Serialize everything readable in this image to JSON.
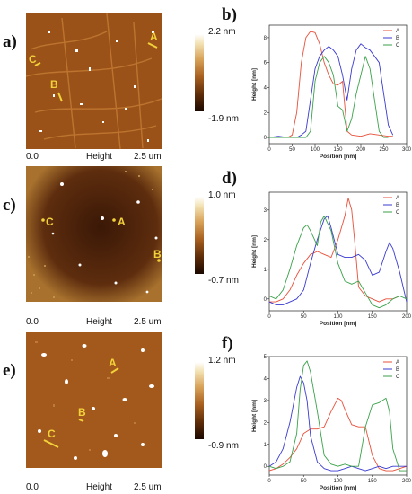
{
  "panels": {
    "a": {
      "label": "a)",
      "scale_max": "2.2 nm",
      "scale_min": "-1.9 nm",
      "x_start": "0.0",
      "channel": "Height",
      "x_end": "2.5 um",
      "markers": [
        "A",
        "C",
        "B"
      ]
    },
    "c": {
      "label": "c)",
      "scale_max": "1.0 nm",
      "scale_min": "-0.7 nm",
      "x_start": "0.0",
      "channel": "Height",
      "x_end": "2.5 um",
      "markers": [
        "C",
        "A",
        "B"
      ]
    },
    "e": {
      "label": "e)",
      "scale_max": "1.2 nm",
      "scale_min": "-0.9 nm",
      "x_start": "0.0",
      "channel": "Height",
      "x_end": "2.5 um",
      "markers": [
        "A",
        "B",
        "C"
      ]
    },
    "b": {
      "label": "b)"
    },
    "d": {
      "label": "d)"
    },
    "f": {
      "label": "f)"
    }
  },
  "colors": {
    "A": "#e8503a",
    "B": "#3a3ad0",
    "C": "#3aa24a"
  },
  "chart_data": [
    {
      "id": "b",
      "type": "line",
      "xlabel": "Position [nm]",
      "ylabel": "Height [nm]",
      "xlim": [
        0,
        300
      ],
      "ylim": [
        -0.5,
        9
      ],
      "xticks": [
        "0",
        "50",
        "100",
        "150",
        "200",
        "250",
        "300"
      ],
      "yticks": [
        "0",
        "2",
        "4",
        "6",
        "8"
      ],
      "series": [
        {
          "name": "A",
          "x": [
            0,
            20,
            40,
            50,
            60,
            70,
            80,
            90,
            100,
            110,
            120,
            130,
            140,
            150,
            160,
            170,
            180,
            200,
            220,
            240,
            260,
            270
          ],
          "y": [
            0,
            0,
            0,
            0.2,
            2,
            6,
            8,
            8.5,
            8.4,
            7.5,
            6,
            5,
            4.3,
            4.2,
            4.5,
            0.5,
            0.2,
            0.1,
            0.3,
            0.2,
            0.1,
            0.1
          ]
        },
        {
          "name": "B",
          "x": [
            0,
            20,
            40,
            60,
            70,
            80,
            90,
            100,
            110,
            120,
            130,
            140,
            150,
            160,
            170,
            180,
            190,
            200,
            210,
            220,
            230,
            240,
            250,
            260,
            270
          ],
          "y": [
            0,
            0.1,
            0,
            0,
            0.2,
            0.5,
            3,
            5.5,
            6.5,
            7,
            7.3,
            7,
            6.5,
            5,
            3,
            5.5,
            7,
            7.5,
            7.2,
            7,
            6.5,
            6,
            3.5,
            1,
            0.2
          ]
        },
        {
          "name": "C",
          "x": [
            0,
            40,
            60,
            70,
            80,
            90,
            100,
            110,
            120,
            130,
            140,
            150,
            160,
            170,
            180,
            190,
            200,
            210,
            220,
            230,
            240,
            250,
            260
          ],
          "y": [
            0,
            0,
            0,
            0,
            0,
            0.5,
            4.5,
            6,
            6.5,
            6,
            5,
            2.5,
            2.2,
            0.5,
            1.5,
            3.5,
            5,
            6.5,
            5.5,
            3,
            0.5,
            0,
            0
          ]
        }
      ]
    },
    {
      "id": "d",
      "type": "line",
      "xlabel": "Position [nm]",
      "ylabel": "Height [nm]",
      "xlim": [
        0,
        200
      ],
      "ylim": [
        -0.4,
        3.6
      ],
      "xticks": [
        "0",
        "50",
        "100",
        "150",
        "200"
      ],
      "yticks": [
        "0",
        "1",
        "2",
        "3"
      ],
      "series": [
        {
          "name": "A",
          "x": [
            0,
            10,
            20,
            30,
            40,
            50,
            60,
            70,
            80,
            90,
            100,
            110,
            115,
            120,
            125,
            130,
            140,
            150,
            160,
            170,
            180,
            190,
            200
          ],
          "y": [
            -0.1,
            -0.1,
            0,
            0.3,
            0.8,
            1.2,
            1.5,
            1.6,
            1.5,
            1.4,
            2,
            2.8,
            3.4,
            3,
            1.8,
            0.4,
            0.1,
            0,
            -0.1,
            0,
            0,
            0.1,
            0.1
          ]
        },
        {
          "name": "B",
          "x": [
            0,
            10,
            20,
            30,
            40,
            50,
            60,
            70,
            80,
            85,
            90,
            100,
            110,
            120,
            130,
            140,
            150,
            160,
            170,
            175,
            180,
            190,
            200
          ],
          "y": [
            -0.1,
            -0.2,
            -0.2,
            -0.1,
            0,
            0.3,
            1.2,
            2,
            2.7,
            2.8,
            2.4,
            1.5,
            1.4,
            1.4,
            1.5,
            1.3,
            0.8,
            0.9,
            1.6,
            1.9,
            1.7,
            0.9,
            -0.1
          ]
        },
        {
          "name": "C",
          "x": [
            0,
            10,
            20,
            30,
            40,
            50,
            55,
            60,
            70,
            75,
            80,
            90,
            100,
            110,
            120,
            130,
            140,
            150,
            160,
            170,
            180,
            190,
            200
          ],
          "y": [
            0.1,
            0,
            0.3,
            1,
            1.8,
            2.4,
            2.5,
            2.3,
            1.8,
            2.6,
            2.8,
            2.3,
            1.2,
            0.6,
            0.5,
            0.6,
            0.2,
            -0.2,
            -0.3,
            -0.2,
            0,
            0.1,
            0
          ]
        }
      ]
    },
    {
      "id": "f",
      "type": "line",
      "xlabel": "Position [nm]",
      "ylabel": "Height [nm]",
      "xlim": [
        0,
        200
      ],
      "ylim": [
        -0.4,
        5
      ],
      "xticks": [
        "0",
        "50",
        "100",
        "150",
        "200"
      ],
      "yticks": [
        "0",
        "1",
        "2",
        "3",
        "4",
        "5"
      ],
      "series": [
        {
          "name": "A",
          "x": [
            0,
            10,
            20,
            30,
            40,
            50,
            60,
            70,
            80,
            90,
            100,
            105,
            110,
            120,
            130,
            140,
            150,
            160,
            170,
            180,
            190,
            200
          ],
          "y": [
            -0.2,
            -0.1,
            0.1,
            0.4,
            0.8,
            1.5,
            1.7,
            1.7,
            1.8,
            2.5,
            3.1,
            3,
            2.6,
            1.9,
            1.8,
            1.8,
            0.5,
            -0.1,
            -0.2,
            -0.2,
            -0.1,
            0
          ]
        },
        {
          "name": "B",
          "x": [
            0,
            10,
            20,
            30,
            40,
            45,
            50,
            55,
            60,
            70,
            80,
            90,
            100,
            110,
            120,
            130,
            140,
            150,
            160,
            170,
            180,
            190,
            200
          ],
          "y": [
            0,
            0.2,
            0.8,
            2,
            3.6,
            4.1,
            3.8,
            3,
            1.4,
            0.2,
            -0.1,
            -0.2,
            -0.2,
            -0.1,
            0,
            -0.1,
            -0.2,
            -0.1,
            0,
            -0.1,
            0,
            0,
            0
          ]
        },
        {
          "name": "C",
          "x": [
            0,
            10,
            20,
            30,
            40,
            45,
            50,
            55,
            60,
            70,
            80,
            90,
            100,
            110,
            120,
            130,
            140,
            150,
            160,
            170,
            175,
            180,
            190,
            200
          ],
          "y": [
            0,
            -0.1,
            0,
            0.2,
            1.5,
            3.5,
            4.6,
            4.8,
            4.3,
            2.5,
            0.5,
            0.1,
            0,
            0.1,
            0,
            0,
            1.8,
            2.8,
            2.9,
            3.1,
            2.5,
            0.8,
            -0.2,
            -0.2
          ]
        }
      ]
    }
  ]
}
